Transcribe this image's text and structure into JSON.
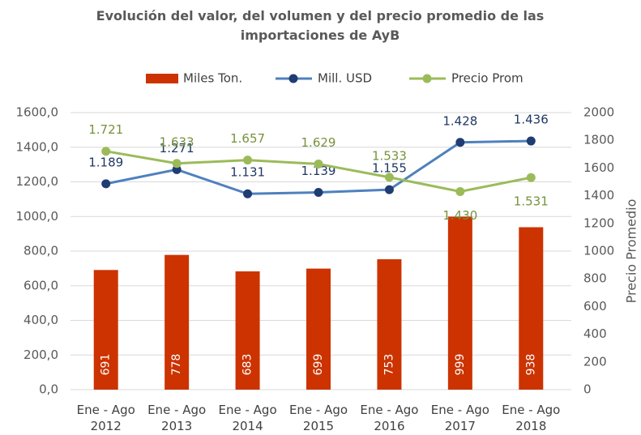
{
  "chart_data": {
    "type": "bar_line",
    "title": "Evolución del valor, del volumen y del precio promedio de las importaciones de AyB",
    "y2_label": "Precio Promedio",
    "categories": [
      "Ene - Ago 2012",
      "Ene - Ago 2013",
      "Ene - Ago 2014",
      "Ene - Ago 2015",
      "Ene - Ago 2016",
      "Ene - Ago 2017",
      "Ene - Ago 2018"
    ],
    "series": [
      {
        "name": "Miles Ton.",
        "type": "bar",
        "color": "#cc3300",
        "values": [
          691,
          778,
          683,
          699,
          753,
          999,
          938
        ]
      },
      {
        "name": "Mill. USD",
        "type": "line",
        "color": "#4f81bd",
        "marker_color": "#1f3c73",
        "label_color": "#1f3864",
        "values": [
          1189,
          1271,
          1131,
          1139,
          1155,
          1428,
          1436
        ],
        "value_labels": [
          "1.189",
          "1.271",
          "1.131",
          "1.139",
          "1.155",
          "1.428",
          "1.436"
        ]
      },
      {
        "name": "Precio Prom",
        "type": "line",
        "axis": "y2",
        "color": "#9bbb59",
        "marker_color": "#9bbb59",
        "label_color": "#76923c",
        "values": [
          1721,
          1633,
          1657,
          1629,
          1533,
          1430,
          1531
        ],
        "value_labels": [
          "1.721",
          "1.633",
          "1.657",
          "1.629",
          "1.533",
          "1.430",
          "1.531"
        ]
      }
    ],
    "ylim": [
      0,
      1600
    ],
    "yticks": [
      {
        "value": 0,
        "label": "0,0"
      },
      {
        "value": 200,
        "label": "200,0"
      },
      {
        "value": 400,
        "label": "400,0"
      },
      {
        "value": 600,
        "label": "600,0"
      },
      {
        "value": 800,
        "label": "800,0"
      },
      {
        "value": 1000,
        "label": "1000,0"
      },
      {
        "value": 1200,
        "label": "1200,0"
      },
      {
        "value": 1400,
        "label": "1400,0"
      },
      {
        "value": 1600,
        "label": "1600,0"
      }
    ],
    "y2lim": [
      0,
      2000
    ],
    "y2ticks": [
      0,
      200,
      400,
      600,
      800,
      1000,
      1200,
      1400,
      1600,
      1800,
      2000
    ],
    "grid": true
  }
}
